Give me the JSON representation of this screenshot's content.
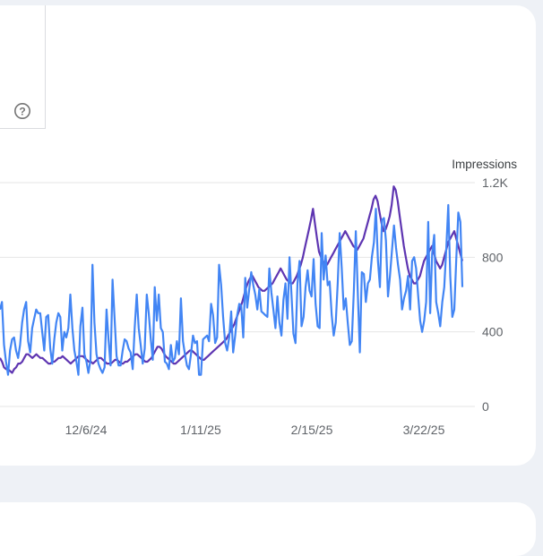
{
  "chart_data": {
    "type": "line",
    "ylabel": "Impressions",
    "ylim": [
      0,
      1200
    ],
    "yticks": [
      {
        "value": 0,
        "label": "0"
      },
      {
        "value": 400,
        "label": "400"
      },
      {
        "value": 800,
        "label": "800"
      },
      {
        "value": 1200,
        "label": "1.2K"
      }
    ],
    "xticks": [
      "12/6/24",
      "1/11/25",
      "2/15/25",
      "3/22/25"
    ],
    "x_start": "11/16/24",
    "x_end": "4/2/25",
    "grid": true,
    "series": [
      {
        "color": "#4285f4",
        "values": [
          520,
          560,
          330,
          240,
          170,
          300,
          360,
          370,
          300,
          260,
          330,
          450,
          520,
          560,
          350,
          290,
          420,
          470,
          520,
          500,
          500,
          400,
          300,
          480,
          490,
          310,
          230,
          360,
          450,
          500,
          480,
          300,
          400,
          370,
          420,
          600,
          420,
          300,
          240,
          170,
          430,
          530,
          280,
          240,
          180,
          250,
          760,
          450,
          280,
          230,
          200,
          180,
          210,
          520,
          360,
          220,
          680,
          470,
          270,
          220,
          220,
          300,
          360,
          350,
          310,
          290,
          200,
          420,
          600,
          420,
          330,
          230,
          310,
          600,
          500,
          360,
          250,
          640,
          460,
          600,
          420,
          400,
          240,
          230,
          200,
          330,
          240,
          260,
          350,
          280,
          580,
          350,
          280,
          220,
          200,
          280,
          380,
          340,
          350,
          170,
          170,
          360,
          370,
          380,
          350,
          550,
          490,
          340,
          370,
          760,
          650,
          480,
          340,
          300,
          370,
          510,
          290,
          380,
          490,
          550,
          540,
          370,
          690,
          530,
          630,
          720,
          650,
          600,
          520,
          630,
          510,
          500,
          490,
          480,
          740,
          610,
          520,
          420,
          590,
          450,
          380,
          570,
          660,
          470,
          800,
          600,
          390,
          340,
          660,
          780,
          430,
          480,
          640,
          730,
          620,
          590,
          790,
          550,
          430,
          420,
          930,
          680,
          810,
          650,
          670,
          490,
          380,
          450,
          660,
          930,
          740,
          520,
          580,
          450,
          330,
          350,
          620,
          940,
          610,
          290,
          720,
          710,
          560,
          660,
          680,
          800,
          880,
          1060,
          780,
          640,
          1000,
          1010,
          890,
          590,
          700,
          840,
          970,
          850,
          760,
          680,
          520,
          580,
          620,
          700,
          520,
          780,
          800,
          740,
          600,
          460,
          400,
          460,
          560,
          990,
          500,
          820,
          920,
          560,
          500,
          430,
          560,
          640,
          850,
          1080,
          700,
          480,
          520,
          800,
          1040,
          990,
          640
        ]
      },
      {
        "color": "#5e35b1",
        "values": [
          260,
          240,
          210,
          200,
          200,
          190,
          180,
          200,
          210,
          230,
          230,
          240,
          260,
          280,
          280,
          270,
          260,
          270,
          280,
          270,
          260,
          260,
          250,
          240,
          230,
          230,
          240,
          240,
          250,
          260,
          260,
          270,
          260,
          250,
          240,
          230,
          240,
          250,
          260,
          270,
          270,
          270,
          260,
          250,
          240,
          240,
          230,
          240,
          250,
          260,
          260,
          250,
          240,
          230,
          230,
          230,
          240,
          250,
          250,
          240,
          230,
          230,
          240,
          240,
          250,
          260,
          270,
          280,
          280,
          270,
          260,
          250,
          240,
          240,
          250,
          260,
          280,
          300,
          320,
          320,
          310,
          290,
          270,
          260,
          250,
          240,
          230,
          230,
          240,
          250,
          260,
          270,
          280,
          290,
          300,
          300,
          290,
          280,
          270,
          260,
          250,
          250,
          260,
          270,
          280,
          290,
          300,
          310,
          320,
          330,
          340,
          350,
          360,
          380,
          400,
          420,
          440,
          470,
          500,
          530,
          560,
          600,
          640,
          670,
          690,
          700,
          680,
          660,
          640,
          630,
          620,
          620,
          630,
          640,
          650,
          660,
          680,
          700,
          720,
          740,
          720,
          700,
          680,
          670,
          660,
          660,
          680,
          700,
          730,
          760,
          800,
          850,
          900,
          950,
          1000,
          1060,
          980,
          900,
          830,
          800,
          780,
          760,
          760,
          780,
          800,
          820,
          840,
          860,
          880,
          900,
          920,
          940,
          920,
          900,
          880,
          860,
          850,
          840,
          860,
          880,
          900,
          940,
          980,
          1020,
          1060,
          1110,
          1130,
          1100,
          1040,
          980,
          940,
          950,
          980,
          1020,
          1080,
          1180,
          1160,
          1100,
          1020,
          940,
          860,
          800,
          740,
          700,
          680,
          660,
          660,
          680,
          700,
          740,
          780,
          800,
          820,
          840,
          860,
          820,
          780,
          760,
          740,
          760,
          800,
          840,
          880,
          900,
          920,
          940,
          900,
          860,
          820,
          780
        ]
      }
    ]
  }
}
